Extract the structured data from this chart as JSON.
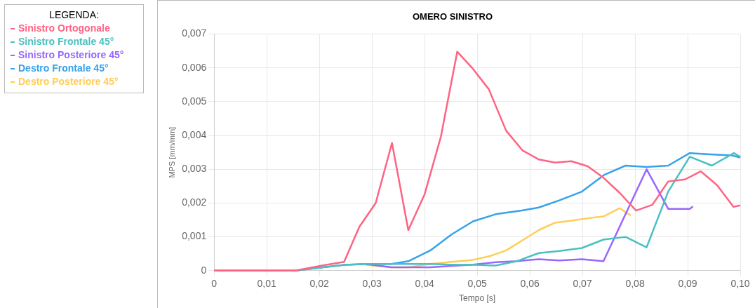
{
  "chart_data": {
    "type": "line",
    "title": "OMERO SINISTRO",
    "xlabel": "Tempo [s]",
    "ylabel": "MPS [mm/mm]",
    "legend_title": "LEGENDA:",
    "legend": "left",
    "grid": true,
    "marker": "none",
    "line_style": "solid",
    "xlim": [
      0,
      0.1
    ],
    "xticks": [
      0,
      {
        "value": 0.01,
        "label": "0,01"
      },
      {
        "value": 0.02,
        "label": "0,02"
      },
      {
        "value": 0.03,
        "label": "0,03"
      },
      {
        "value": 0.04,
        "label": "0,04"
      },
      {
        "value": 0.05,
        "label": "0,05"
      },
      {
        "value": 0.06,
        "label": "0,06"
      },
      {
        "value": 0.07,
        "label": "0,07"
      },
      {
        "value": 0.08,
        "label": "0,08"
      },
      {
        "value": 0.09,
        "label": "0,09"
      },
      {
        "value": 0.1,
        "label": "0,10"
      }
    ],
    "ylim": [
      0,
      0.007
    ],
    "yticks": [
      0,
      {
        "value": 0.001,
        "label": "0,001"
      },
      {
        "value": 0.002,
        "label": "0,002"
      },
      {
        "value": 0.003,
        "label": "0,003"
      },
      {
        "value": 0.004,
        "label": "0,004"
      },
      {
        "value": 0.005,
        "label": "0,005"
      },
      {
        "value": 0.006,
        "label": "0,006"
      },
      {
        "value": 0.007,
        "label": "0,007"
      }
    ],
    "series": [
      {
        "name": "Sinistro Ortogonale",
        "color": "#ff6384",
        "x": [
          0,
          0.0154,
          0.0205,
          0.0247,
          0.0276,
          0.0307,
          0.0338,
          0.0369,
          0.04,
          0.0431,
          0.0462,
          0.0492,
          0.0522,
          0.0555,
          0.0586,
          0.0617,
          0.0648,
          0.0679,
          0.071,
          0.074,
          0.0771,
          0.0802,
          0.0833,
          0.0863,
          0.0895,
          0.0925,
          0.0956,
          0.0987,
          0.1
        ],
        "values": [
          0,
          0,
          0.00015,
          0.00026,
          0.0013,
          0.002,
          0.00378,
          0.0012,
          0.00226,
          0.00397,
          0.00648,
          0.00597,
          0.00537,
          0.00414,
          0.00356,
          0.00329,
          0.0032,
          0.00324,
          0.00309,
          0.00275,
          0.0023,
          0.00178,
          0.00195,
          0.00264,
          0.0027,
          0.00294,
          0.00253,
          0.00189,
          0.00193
        ]
      },
      {
        "name": "Sinistro Frontale 45°",
        "color": "#4bc0c0",
        "x": [
          0,
          0.0154,
          0.0207,
          0.0248,
          0.0288,
          0.0337,
          0.0369,
          0.0411,
          0.0451,
          0.0495,
          0.0535,
          0.0575,
          0.0617,
          0.0656,
          0.0699,
          0.074,
          0.0782,
          0.0822,
          0.0863,
          0.0904,
          0.0946,
          0.0988,
          0.1
        ],
        "values": [
          0,
          0,
          0.0001,
          0.00017,
          0.0002,
          0.0002,
          0.0002,
          0.0002,
          0.00018,
          0.00017,
          0.00015,
          0.00028,
          0.00052,
          0.00058,
          0.00067,
          0.00092,
          0.001,
          0.00069,
          0.00234,
          0.00337,
          0.00311,
          0.00348,
          0.00337
        ]
      },
      {
        "name": "Sinistro Posteriore 45°",
        "color": "#9966ff",
        "x": [
          0.0288,
          0.0337,
          0.0369,
          0.0411,
          0.0451,
          0.0492,
          0.0535,
          0.0575,
          0.0617,
          0.0656,
          0.0699,
          0.074,
          0.0822,
          0.0863,
          0.0904,
          0.091
        ],
        "values": [
          0.0002,
          0.0001,
          0.0001,
          0.0001,
          0.00014,
          0.00018,
          0.00025,
          0.00028,
          0.00034,
          0.0003,
          0.00034,
          0.00028,
          0.003,
          0.00183,
          0.00183,
          0.0019
        ]
      },
      {
        "name": "Destro Frontale 45°",
        "color": "#36a2eb",
        "x": [
          0,
          0.0154,
          0.0207,
          0.0248,
          0.0288,
          0.0337,
          0.0369,
          0.0411,
          0.0451,
          0.0492,
          0.0535,
          0.0585,
          0.0617,
          0.0656,
          0.0699,
          0.0741,
          0.0782,
          0.0822,
          0.0863,
          0.0904,
          0.0943,
          0.0984,
          0.1
        ],
        "values": [
          0,
          0,
          0.0001,
          0.00017,
          0.0002,
          0.0002,
          0.00028,
          0.0006,
          0.00107,
          0.00146,
          0.00167,
          0.00178,
          0.00187,
          0.00208,
          0.00234,
          0.00283,
          0.00311,
          0.00307,
          0.00311,
          0.00348,
          0.00344,
          0.00341,
          0.00335
        ]
      },
      {
        "name": "Destro Posteriore 45°",
        "color": "#ffcd56",
        "x": [
          0.0288,
          0.0337,
          0.0369,
          0.0411,
          0.0451,
          0.0492,
          0.0524,
          0.0555,
          0.0586,
          0.0617,
          0.0648,
          0.0679,
          0.071,
          0.0741,
          0.0771,
          0.0792
        ],
        "values": [
          0.00017,
          0.0001,
          0.0001,
          0.0002,
          0.00026,
          0.00032,
          0.00043,
          0.0006,
          0.0009,
          0.0012,
          0.00142,
          0.00148,
          0.00155,
          0.00161,
          0.00185,
          0.00163
        ]
      }
    ]
  }
}
